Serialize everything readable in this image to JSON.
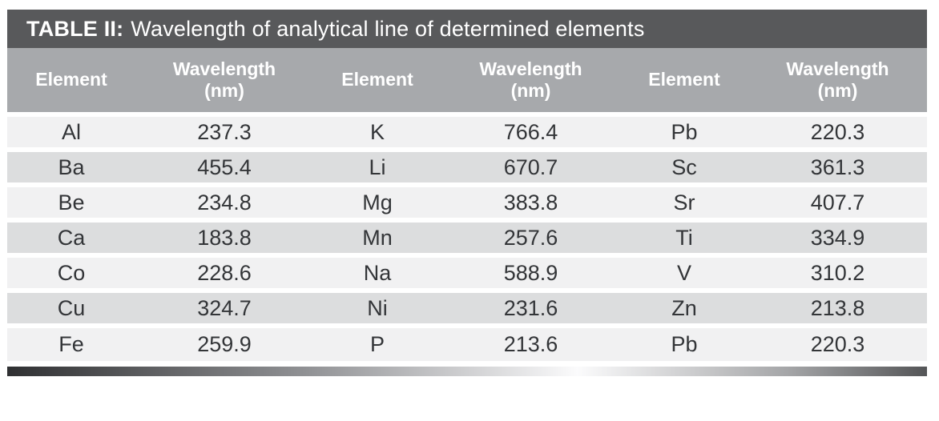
{
  "title": {
    "prefix": "TABLE II:",
    "text": "Wavelength of analytical line of determined elements"
  },
  "table": {
    "headers": [
      {
        "label": "Element"
      },
      {
        "label": "Wavelength",
        "sub": "(nm)"
      },
      {
        "label": "Element"
      },
      {
        "label": "Wavelength",
        "sub": "(nm)"
      },
      {
        "label": "Element"
      },
      {
        "label": "Wavelength",
        "sub": "(nm)"
      }
    ],
    "rows": [
      [
        "Al",
        "237.3",
        "K",
        "766.4",
        "Pb",
        "220.3"
      ],
      [
        "Ba",
        "455.4",
        "Li",
        "670.7",
        "Sc",
        "361.3"
      ],
      [
        "Be",
        "234.8",
        "Mg",
        "383.8",
        "Sr",
        "407.7"
      ],
      [
        "Ca",
        "183.8",
        "Mn",
        "257.6",
        "Ti",
        "334.9"
      ],
      [
        "Co",
        "228.6",
        "Na",
        "588.9",
        "V",
        "310.2"
      ],
      [
        "Cu",
        "324.7",
        "Ni",
        "231.6",
        "Zn",
        "213.8"
      ],
      [
        "Fe",
        "259.9",
        "P",
        "213.6",
        "Pb",
        "220.3"
      ]
    ]
  },
  "colors": {
    "title_bar": "#58595b",
    "header_bg": "#a7a9ac",
    "row_light": "#f1f1f2",
    "row_dark": "#dcddde",
    "header_text": "#ffffff",
    "body_text": "#333538"
  }
}
